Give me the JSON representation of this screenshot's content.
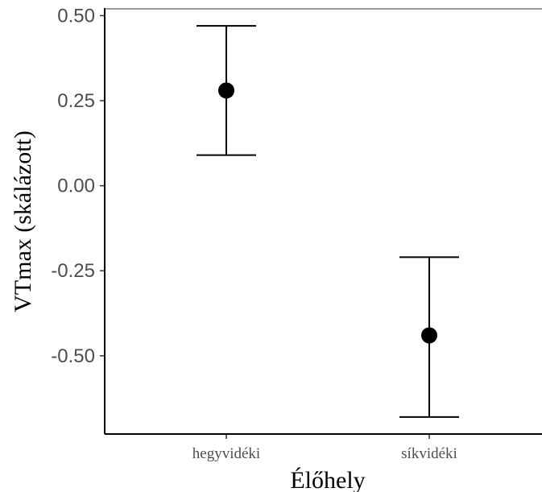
{
  "chart_data": {
    "type": "errorbar",
    "xlabel": "Élőhely",
    "ylabel": "VTmax (skálázott)",
    "categories": [
      "hegyvidéki",
      "síkvidéki"
    ],
    "series": [
      {
        "values": [
          0.28,
          -0.44
        ],
        "lower": [
          0.09,
          -0.68
        ],
        "upper": [
          0.47,
          -0.21
        ]
      }
    ],
    "yticks": [
      0.5,
      0.25,
      0.0,
      -0.25,
      -0.5
    ],
    "ytick_labels": [
      "0.50",
      "0.25",
      "0.00",
      "-0.25",
      "-0.50"
    ],
    "ylim": [
      -0.73,
      0.52
    ],
    "grid": false,
    "colors": {
      "point": "#000000",
      "errorbar": "#000000",
      "tick_text": "#4d4d4d"
    }
  }
}
